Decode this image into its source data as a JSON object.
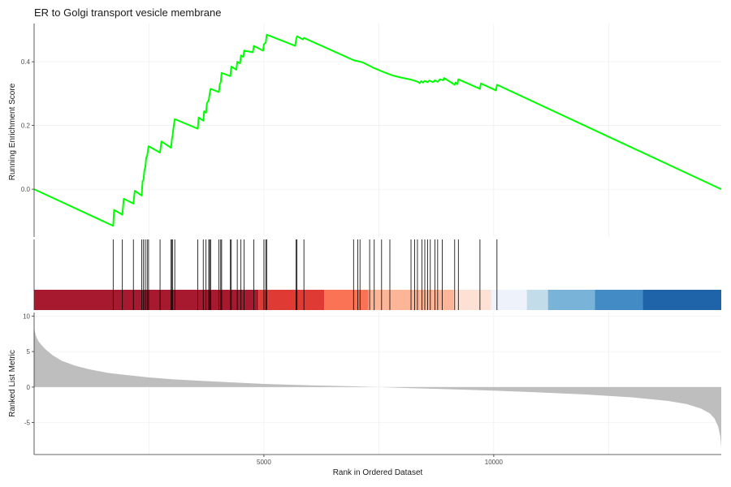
{
  "title": "ER to Golgi transport vesicle membrane",
  "colors": {
    "running_score": "#00ff00",
    "hit_line": "#000000",
    "metric_fill": "#bebebe",
    "grid": "#ebebeb",
    "heat_bands": [
      "#a6192e",
      "#e03a35",
      "#fa7355",
      "#fcb597",
      "#fde1d4",
      "#eef3fb",
      "#c2dcea",
      "#7ab3d8",
      "#428bc4",
      "#1f64a9"
    ]
  },
  "chart_data": [
    {
      "type": "line",
      "title": "ER to Golgi transport vesicle membrane",
      "xlabel": "",
      "ylabel": "Running Enrichment Score",
      "xlim": [
        0,
        14950
      ],
      "ylim": [
        -0.15,
        0.52
      ],
      "x_ticks": [
        5000,
        10000
      ],
      "y_ticks": [
        0.0,
        0.2,
        0.4
      ],
      "y_tick_labels": [
        "0.0",
        "0.2",
        "0.4"
      ],
      "grid": true,
      "series": [
        {
          "color": "#00ff00",
          "points": [
            [
              0,
              0
            ],
            [
              1720,
              -0.115
            ],
            [
              1740,
              -0.065
            ],
            [
              1920,
              -0.08
            ],
            [
              1950,
              -0.03
            ],
            [
              2160,
              -0.045
            ],
            [
              2190,
              -0.005
            ],
            [
              2340,
              -0.02
            ],
            [
              2360,
              0.025
            ],
            [
              2380,
              0.03
            ],
            [
              2400,
              0.06
            ],
            [
              2420,
              0.07
            ],
            [
              2440,
              0.1
            ],
            [
              2460,
              0.105
            ],
            [
              2490,
              0.135
            ],
            [
              2740,
              0.115
            ],
            [
              2770,
              0.15
            ],
            [
              2980,
              0.13
            ],
            [
              3000,
              0.16
            ],
            [
              3010,
              0.165
            ],
            [
              3030,
              0.19
            ],
            [
              3060,
              0.22
            ],
            [
              3560,
              0.19
            ],
            [
              3580,
              0.225
            ],
            [
              3680,
              0.215
            ],
            [
              3700,
              0.245
            ],
            [
              3740,
              0.24
            ],
            [
              3760,
              0.27
            ],
            [
              3800,
              0.28
            ],
            [
              3820,
              0.3
            ],
            [
              3840,
              0.315
            ],
            [
              4020,
              0.305
            ],
            [
              4040,
              0.33
            ],
            [
              4060,
              0.335
            ],
            [
              4080,
              0.365
            ],
            [
              4270,
              0.355
            ],
            [
              4290,
              0.385
            ],
            [
              4400,
              0.375
            ],
            [
              4420,
              0.4
            ],
            [
              4480,
              0.395
            ],
            [
              4500,
              0.42
            ],
            [
              4550,
              0.415
            ],
            [
              4570,
              0.435
            ],
            [
              4760,
              0.43
            ],
            [
              4780,
              0.45
            ],
            [
              4980,
              0.435
            ],
            [
              5000,
              0.455
            ],
            [
              5040,
              0.46
            ],
            [
              5060,
              0.485
            ],
            [
              5680,
              0.45
            ],
            [
              5700,
              0.47
            ],
            [
              5720,
              0.48
            ],
            [
              5850,
              0.47
            ],
            [
              5870,
              0.475
            ],
            [
              6950,
              0.405
            ],
            [
              7150,
              0.398
            ],
            [
              7400,
              0.38
            ],
            [
              7600,
              0.368
            ],
            [
              7800,
              0.357
            ],
            [
              8000,
              0.35
            ],
            [
              8200,
              0.344
            ],
            [
              8350,
              0.337
            ],
            [
              8390,
              0.333
            ],
            [
              8420,
              0.339
            ],
            [
              8460,
              0.335
            ],
            [
              8500,
              0.34
            ],
            [
              8560,
              0.336
            ],
            [
              8600,
              0.341
            ],
            [
              8680,
              0.336
            ],
            [
              8720,
              0.342
            ],
            [
              8780,
              0.337
            ],
            [
              8830,
              0.345
            ],
            [
              8900,
              0.342
            ],
            [
              8920,
              0.349
            ],
            [
              9150,
              0.328
            ],
            [
              9170,
              0.335
            ],
            [
              9210,
              0.33
            ],
            [
              9230,
              0.345
            ],
            [
              9700,
              0.315
            ],
            [
              9720,
              0.332
            ],
            [
              10050,
              0.31
            ],
            [
              10070,
              0.328
            ],
            [
              14950,
              0.0
            ]
          ]
        }
      ]
    },
    {
      "type": "heatmap",
      "xlim": [
        0,
        14950
      ],
      "hits": [
        1720,
        1920,
        2160,
        2340,
        2380,
        2420,
        2460,
        2490,
        2740,
        2980,
        3000,
        3010,
        3060,
        3560,
        3680,
        3740,
        3800,
        3820,
        3840,
        4020,
        4060,
        4080,
        4270,
        4290,
        4420,
        4500,
        4570,
        4780,
        5000,
        5040,
        5060,
        5700,
        5720,
        5870,
        6950,
        7040,
        7090,
        7300,
        7400,
        7560,
        7740,
        8200,
        8280,
        8340,
        8440,
        8500,
        8560,
        8620,
        8720,
        8780,
        8880,
        9150,
        9230,
        9700,
        10070
      ],
      "bands": [
        {
          "from": 0,
          "to": 4880
        },
        {
          "from": 4880,
          "to": 6310
        },
        {
          "from": 6310,
          "to": 7270
        },
        {
          "from": 7270,
          "to": 9130
        },
        {
          "from": 9130,
          "to": 9940
        },
        {
          "from": 9940,
          "to": 10720
        },
        {
          "from": 10720,
          "to": 11180
        },
        {
          "from": 11180,
          "to": 12200
        },
        {
          "from": 12200,
          "to": 13240
        },
        {
          "from": 13240,
          "to": 14950
        }
      ]
    },
    {
      "type": "area",
      "xlabel": "Rank in Ordered Dataset",
      "ylabel": "Ranked List Metric",
      "xlim": [
        0,
        14950
      ],
      "ylim": [
        -9.5,
        10.5
      ],
      "x_ticks": [
        5000,
        10000
      ],
      "x_tick_labels": [
        "5000",
        "10000"
      ],
      "y_ticks": [
        -5,
        0,
        5,
        10
      ],
      "y_tick_labels": [
        "-5",
        "0",
        "5",
        "10"
      ],
      "grid": true,
      "points": [
        [
          0,
          8.2
        ],
        [
          10,
          8.0
        ],
        [
          30,
          7.4
        ],
        [
          60,
          6.9
        ],
        [
          100,
          6.4
        ],
        [
          150,
          6.0
        ],
        [
          250,
          5.3
        ],
        [
          400,
          4.5
        ],
        [
          600,
          3.7
        ],
        [
          900,
          3.0
        ],
        [
          1200,
          2.5
        ],
        [
          1600,
          2.0
        ],
        [
          2000,
          1.7
        ],
        [
          2500,
          1.35
        ],
        [
          3000,
          1.1
        ],
        [
          4000,
          0.75
        ],
        [
          5000,
          0.45
        ],
        [
          6000,
          0.25
        ],
        [
          7000,
          0.1
        ],
        [
          7500,
          0.0
        ],
        [
          8000,
          -0.12
        ],
        [
          9000,
          -0.3
        ],
        [
          10000,
          -0.5
        ],
        [
          11000,
          -0.75
        ],
        [
          12000,
          -1.05
        ],
        [
          13000,
          -1.45
        ],
        [
          13800,
          -1.95
        ],
        [
          14200,
          -2.4
        ],
        [
          14500,
          -3.0
        ],
        [
          14700,
          -3.7
        ],
        [
          14800,
          -4.4
        ],
        [
          14880,
          -5.5
        ],
        [
          14930,
          -7.0
        ],
        [
          14950,
          -8.5
        ]
      ]
    }
  ]
}
